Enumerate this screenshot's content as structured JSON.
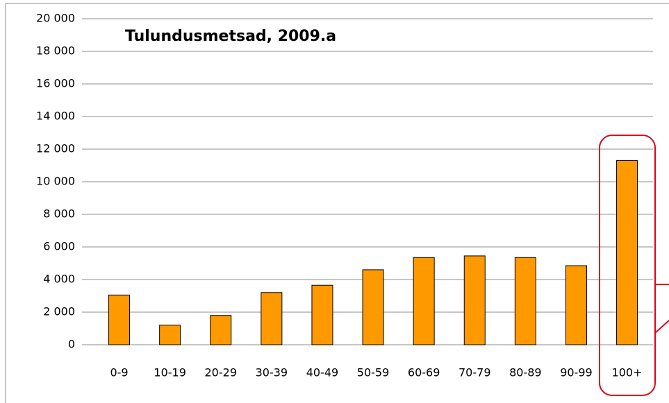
{
  "chart_data": {
    "type": "bar",
    "title": "Tulundusmetsad, 2009.a",
    "categories": [
      "0-9",
      "10-19",
      "20-29",
      "30-39",
      "40-49",
      "50-59",
      "60-69",
      "70-79",
      "80-89",
      "90-99",
      "100+"
    ],
    "values": [
      3050,
      1200,
      1800,
      3200,
      3650,
      4600,
      5350,
      5450,
      5350,
      4850,
      11300
    ],
    "color": "#ff9900",
    "ylim": [
      0,
      20000
    ],
    "yticks": [
      0,
      {
        "value": 2000,
        "label": "2 000"
      },
      {
        "value": 4000,
        "label": "4 000"
      },
      {
        "value": 6000,
        "label": "6 000"
      },
      {
        "value": 8000,
        "label": "8 000"
      },
      {
        "value": 10000,
        "label": "10 000"
      },
      {
        "value": 12000,
        "label": "12 000"
      },
      {
        "value": 14000,
        "label": "14 000"
      },
      {
        "value": 16000,
        "label": "16 000"
      },
      {
        "value": 18000,
        "label": "18 000"
      },
      {
        "value": 20000,
        "label": "20 000"
      }
    ],
    "grid": true
  }
}
